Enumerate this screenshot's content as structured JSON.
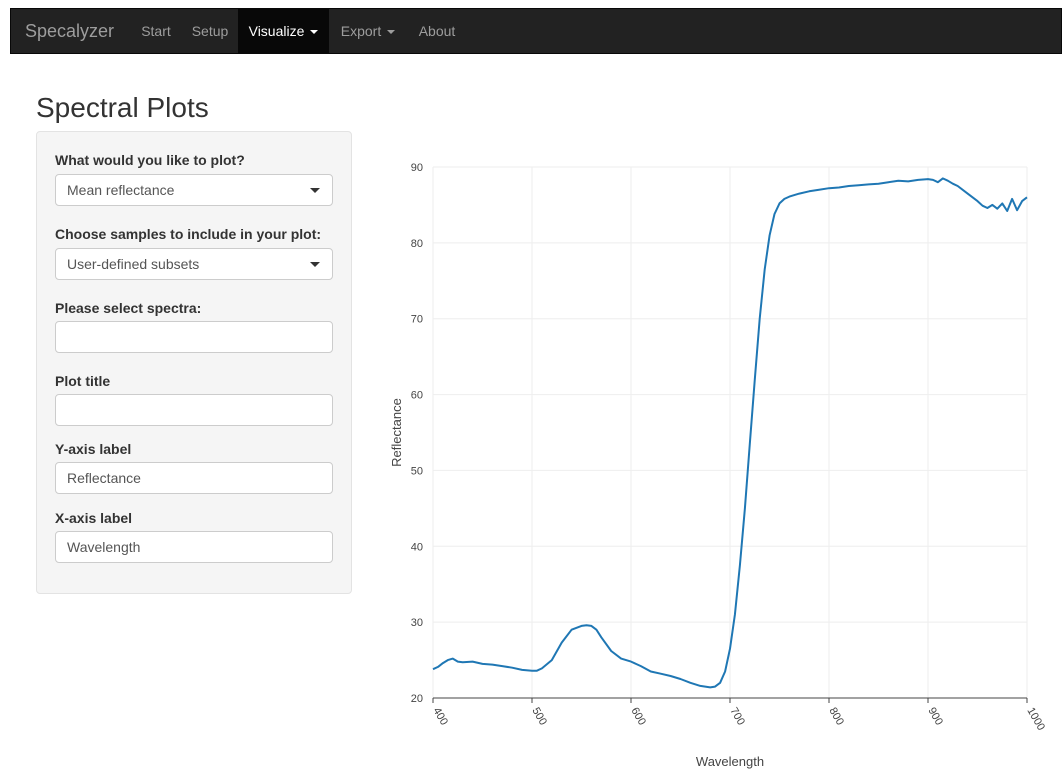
{
  "navbar": {
    "brand": "Specalyzer",
    "items": [
      {
        "label": "Start",
        "active": false,
        "dropdown": false
      },
      {
        "label": "Setup",
        "active": false,
        "dropdown": false
      },
      {
        "label": "Visualize",
        "active": true,
        "dropdown": true
      },
      {
        "label": "Export",
        "active": false,
        "dropdown": true
      },
      {
        "label": "About",
        "active": false,
        "dropdown": false
      }
    ]
  },
  "page": {
    "title": "Spectral Plots"
  },
  "form": {
    "plot_label": "What would you like to plot?",
    "plot_value": "Mean reflectance",
    "samples_label": "Choose samples to include in your plot:",
    "samples_value": "User-defined subsets",
    "spectra_label": "Please select spectra:",
    "spectra_value": "",
    "title_label": "Plot title",
    "title_value": "",
    "ylabel_label": "Y-axis label",
    "ylabel_value": "Reflectance",
    "xlabel_label": "X-axis label",
    "xlabel_value": "Wavelength"
  },
  "chart_data": {
    "type": "line",
    "xlabel": "Wavelength",
    "ylabel": "Reflectance",
    "xlim": [
      400,
      1000
    ],
    "ylim": [
      20,
      90
    ],
    "xticks": [
      400,
      500,
      600,
      700,
      800,
      900,
      1000
    ],
    "yticks": [
      20,
      30,
      40,
      50,
      60,
      70,
      80,
      90
    ],
    "grid": true,
    "line_color": "#1f77b4",
    "series": [
      {
        "x": [
          400,
          405,
          410,
          415,
          420,
          425,
          430,
          440,
          450,
          460,
          470,
          480,
          490,
          500,
          505,
          510,
          520,
          530,
          540,
          550,
          555,
          560,
          565,
          570,
          580,
          590,
          600,
          610,
          620,
          630,
          640,
          650,
          660,
          670,
          680,
          685,
          690,
          695,
          700,
          705,
          710,
          715,
          720,
          725,
          730,
          735,
          740,
          745,
          750,
          755,
          760,
          765,
          770,
          780,
          790,
          800,
          810,
          820,
          830,
          840,
          850,
          860,
          870,
          880,
          890,
          900,
          905,
          910,
          915,
          920,
          925,
          930,
          940,
          950,
          955,
          960,
          965,
          970,
          975,
          980,
          985,
          990,
          995,
          1000
        ],
        "y": [
          23.8,
          24.1,
          24.6,
          25.0,
          25.2,
          24.8,
          24.7,
          24.8,
          24.5,
          24.4,
          24.2,
          24.0,
          23.7,
          23.6,
          23.6,
          23.9,
          25.0,
          27.3,
          29.0,
          29.5,
          29.6,
          29.5,
          29.0,
          28.0,
          26.2,
          25.2,
          24.8,
          24.2,
          23.5,
          23.2,
          22.9,
          22.5,
          22.0,
          21.6,
          21.4,
          21.5,
          22.0,
          23.5,
          26.5,
          31.0,
          37.5,
          45.0,
          53.5,
          62.0,
          70.0,
          76.5,
          81.0,
          83.8,
          85.2,
          85.8,
          86.1,
          86.3,
          86.5,
          86.8,
          87.0,
          87.2,
          87.3,
          87.5,
          87.6,
          87.7,
          87.8,
          88.0,
          88.2,
          88.1,
          88.3,
          88.4,
          88.3,
          88.0,
          88.5,
          88.2,
          87.8,
          87.5,
          86.5,
          85.5,
          84.9,
          84.6,
          85.0,
          84.5,
          85.2,
          84.2,
          85.8,
          84.3,
          85.5,
          86.0
        ]
      }
    ]
  }
}
